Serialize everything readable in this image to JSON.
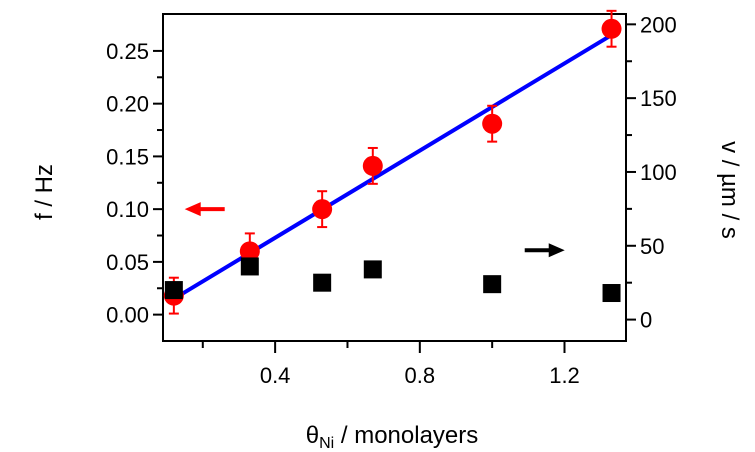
{
  "chart_data": {
    "type": "scatter",
    "xlabel": {
      "symbol": "θ",
      "subscript": "Ni",
      "rest": " / monolayers"
    },
    "ylabel_left": "f / Hz",
    "ylabel_right": "v / µm / s",
    "xlim": [
      0.09,
      1.37
    ],
    "ylim_left": [
      -0.025,
      0.285
    ],
    "ylim_right": [
      -14.5,
      207
    ],
    "x_ticks": [
      0.4,
      0.8,
      1.2
    ],
    "x_tick_labels": [
      "0.4",
      "0.8",
      "1.2"
    ],
    "x_minor_ticks": [
      0.2,
      0.6,
      1.0
    ],
    "y_left_ticks": [
      0.0,
      0.05,
      0.1,
      0.15,
      0.2,
      0.25
    ],
    "y_left_tick_labels": [
      "0.00",
      "0.05",
      "0.10",
      "0.15",
      "0.20",
      "0.25"
    ],
    "y_right_ticks": [
      0,
      50,
      100,
      150,
      200
    ],
    "y_right_tick_labels": [
      "0",
      "50",
      "100",
      "150",
      "200"
    ],
    "grid": false,
    "colors": {
      "frequency": "#ff0000",
      "velocity": "#000000",
      "fit": "#0000ff"
    },
    "series": [
      {
        "axis": "left",
        "marker": "circle",
        "x": [
          0.12,
          0.33,
          0.53,
          0.67,
          1.0,
          1.33
        ],
        "y": [
          0.018,
          0.06,
          0.1,
          0.141,
          0.181,
          0.271
        ],
        "error": [
          0.017,
          0.017,
          0.017,
          0.017,
          0.017,
          0.017
        ]
      },
      {
        "axis": "right",
        "marker": "square",
        "x": [
          0.12,
          0.33,
          0.53,
          0.67,
          1.0,
          1.33
        ],
        "y": [
          20,
          36,
          25,
          34,
          24,
          18
        ]
      },
      {
        "axis": "left",
        "marker": "line",
        "x": [
          0.12,
          1.33
        ],
        "y": [
          0.015,
          0.265
        ]
      }
    ],
    "annotations": [
      {
        "type": "arrow",
        "direction": "left",
        "color": "#ff0000",
        "x": 0.15,
        "y_left": 0.1
      },
      {
        "type": "arrow",
        "direction": "right",
        "color": "#000000",
        "x": 1.09,
        "y_right": 47
      }
    ]
  }
}
